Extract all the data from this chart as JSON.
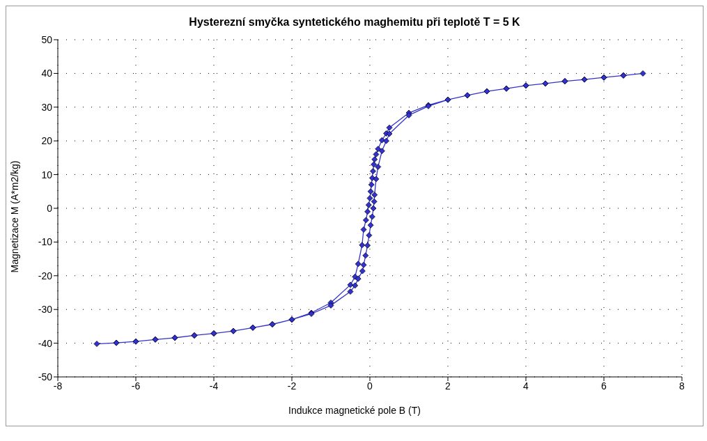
{
  "chart_data": {
    "type": "line",
    "title": "Hysterezní smyčka syntetického maghemitu při teplotě T = 5 K",
    "xlabel": "Indukce magnetické pole B (T)",
    "ylabel": "Magnetizace M (A*m2/kg)",
    "xlim": [
      -8,
      8
    ],
    "xticks": [
      -8,
      -6,
      -4,
      -2,
      0,
      2,
      4,
      6,
      8
    ],
    "ylim": [
      -50,
      50
    ],
    "yticks": [
      -50,
      -40,
      -30,
      -20,
      -10,
      0,
      10,
      20,
      30,
      40,
      50
    ],
    "grid": true,
    "legend": false,
    "marker": "diamond",
    "line_style": "solid",
    "series": [
      {
        "color": "#3333cc",
        "x": [
          7,
          6.5,
          6,
          5.5,
          5,
          4.5,
          4,
          3.5,
          3,
          2.5,
          2,
          1.5,
          1,
          0.5,
          0.42,
          0.31,
          0.21,
          0.16,
          0.12,
          0.1,
          0.08,
          0.06,
          0.04,
          0.02,
          0,
          -0.03,
          -0.06,
          -0.1,
          -0.16,
          -0.2,
          -0.3,
          -0.38,
          -0.5,
          -1,
          -1.5,
          -2,
          -2.5,
          -3,
          -3.5,
          -4,
          -4.5,
          -5,
          -5.5,
          -6,
          -6.5,
          -7,
          -6.5,
          -6,
          -5.5,
          -5,
          -4.5,
          -4,
          -3.5,
          -3,
          -2.5,
          -2,
          -1.5,
          -1,
          -0.5,
          -0.38,
          -0.3,
          -0.19,
          -0.16,
          -0.11,
          -0.06,
          -0.02,
          0.02,
          0.06,
          0.09,
          0.11,
          0.12,
          0.16,
          0.21,
          0.31,
          0.42,
          0.5,
          1,
          1.5,
          2,
          2.5,
          3,
          3.5,
          4,
          4.5,
          5,
          5.5,
          6,
          6.5
        ],
        "values": [
          40,
          39.4,
          38.8,
          38.2,
          37.7,
          37,
          36.4,
          35.5,
          34.7,
          33.5,
          32.2,
          30.6,
          28.3,
          23.9,
          22.2,
          20.2,
          17.6,
          16,
          14.5,
          13,
          11,
          9,
          7,
          5,
          3,
          1,
          -1,
          -3.5,
          -6.3,
          -10.9,
          -16.5,
          -20.3,
          -22.7,
          -28,
          -31,
          -33,
          -34.4,
          -35.4,
          -36.4,
          -37.1,
          -37.7,
          -38.4,
          -38.9,
          -39.5,
          -39.9,
          -40.2,
          -39.9,
          -39.5,
          -38.9,
          -38.4,
          -37.7,
          -37.1,
          -36.4,
          -35.4,
          -34.4,
          -33,
          -31.3,
          -28.8,
          -24.7,
          -22.9,
          -20.9,
          -18.6,
          -16.8,
          -14,
          -11,
          -8,
          -5,
          -2.5,
          0,
          2,
          4,
          8.7,
          12.3,
          17,
          20,
          22.1,
          27.6,
          30.3,
          32.2,
          33.5,
          34.7,
          35.5,
          36.4,
          37,
          37.7,
          38.2,
          38.8,
          39.4
        ]
      }
    ]
  }
}
